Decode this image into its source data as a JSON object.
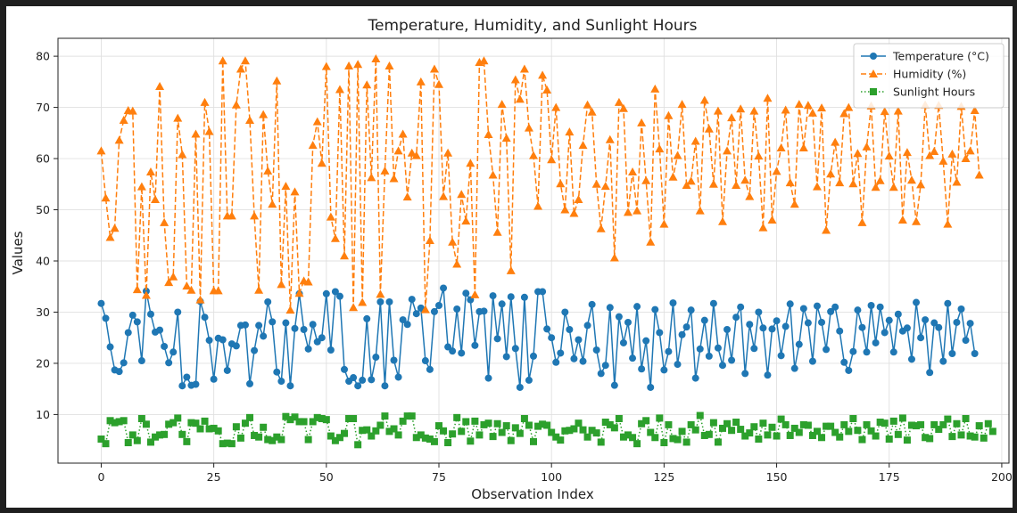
{
  "chart_data": {
    "type": "line",
    "title": "Temperature, Humidity, and Sunlight Hours",
    "xlabel": "Observation Index",
    "ylabel": "Values",
    "xlim": [
      -9.6,
      201.6
    ],
    "ylim": [
      0.5,
      83.5
    ],
    "xticks": [
      0,
      25,
      50,
      75,
      100,
      125,
      150,
      175,
      200
    ],
    "yticks": [
      10,
      20,
      30,
      40,
      50,
      60,
      70,
      80
    ],
    "grid": true,
    "legend_position": "top-right",
    "series": [
      {
        "name": "Temperature (°C)",
        "color": "#1f77b4",
        "line_style": "solid",
        "marker": "circle",
        "values": [
          31.7,
          28.8,
          23.2,
          18.7,
          18.4,
          20.1,
          26.0,
          29.4,
          28.1,
          20.5,
          34.1,
          29.6,
          26.1,
          26.5,
          23.3,
          20.1,
          22.2,
          30.0,
          15.6,
          17.3,
          15.7,
          15.9,
          32.1,
          29.0,
          24.5,
          16.9,
          24.9,
          24.6,
          18.6,
          23.8,
          23.4,
          27.4,
          27.5,
          16.0,
          22.5,
          27.4,
          25.3,
          32.0,
          28.1,
          18.3,
          16.5,
          27.9,
          15.6,
          26.8,
          33.6,
          26.6,
          22.8,
          27.6,
          24.2,
          25.0,
          33.6,
          22.6,
          34.0,
          33.1,
          18.8,
          16.5,
          17.2,
          15.6,
          16.7,
          28.7,
          16.8,
          21.2,
          32.0,
          15.6,
          32.0,
          20.6,
          17.3,
          28.5,
          27.6,
          32.5,
          29.7,
          30.8,
          20.5,
          18.8,
          30.1,
          31.3,
          34.7,
          23.2,
          22.4,
          30.6,
          22.0,
          33.7,
          32.4,
          23.5,
          30.1,
          30.2,
          17.1,
          33.2,
          24.8,
          31.6,
          21.3,
          33.0,
          22.9,
          15.3,
          32.9,
          16.7,
          21.4,
          34.0,
          34.0,
          26.7,
          25.0,
          20.2,
          22.0,
          30.0,
          26.6,
          20.9,
          24.6,
          20.4,
          27.4,
          31.5,
          22.6,
          18.0,
          19.6,
          30.9,
          15.7,
          29.1,
          24.0,
          28.0,
          21.0,
          31.1,
          18.9,
          24.4,
          15.3,
          30.5,
          26.0,
          18.7,
          22.3,
          31.8,
          19.8,
          25.6,
          27.1,
          30.4,
          17.1,
          22.8,
          28.4,
          21.4,
          31.7,
          23.0,
          19.6,
          26.6,
          20.6,
          29.0,
          31.0,
          18.0,
          27.6,
          22.9,
          30.0,
          26.9,
          17.7,
          26.7,
          28.3,
          21.5,
          27.2,
          31.6,
          19.0,
          23.7,
          30.7,
          27.9,
          20.4,
          31.2,
          28.0,
          22.7,
          30.1,
          31.0,
          26.3,
          20.2,
          18.6,
          22.3,
          30.4,
          27.0,
          22.2,
          31.3,
          24.0,
          31.0,
          26.0,
          28.4,
          22.2,
          29.6,
          26.3,
          26.9,
          20.8,
          31.9,
          25.0,
          28.5,
          18.2,
          27.9,
          27.0,
          20.4,
          31.7,
          21.9,
          28.0,
          30.6,
          24.5,
          27.8,
          21.9
        ]
      },
      {
        "name": "Humidity (%)",
        "color": "#ff7f0e",
        "line_style": "dashed",
        "marker": "triangle",
        "values": [
          61.5,
          52.3,
          44.6,
          46.4,
          63.6,
          67.5,
          69.4,
          69.3,
          34.4,
          54.5,
          33.3,
          57.4,
          52.0,
          74.1,
          47.5,
          35.8,
          36.9,
          67.9,
          60.8,
          35.1,
          34.3,
          64.8,
          32.4,
          71.0,
          65.3,
          34.2,
          34.2,
          79.1,
          48.8,
          48.8,
          70.5,
          77.5,
          79.1,
          67.5,
          48.8,
          34.3,
          68.6,
          57.6,
          51.1,
          75.2,
          35.4,
          54.6,
          30.4,
          53.5,
          33.7,
          36.1,
          35.9,
          62.6,
          67.2,
          59.1,
          78.0,
          48.6,
          44.4,
          73.5,
          41.0,
          78.1,
          30.9,
          78.4,
          31.9,
          74.4,
          56.3,
          79.5,
          33.5,
          57.6,
          78.1,
          56.1,
          61.5,
          64.8,
          52.5,
          61.1,
          60.6,
          75.0,
          30.5,
          44.0,
          77.5,
          74.5,
          52.6,
          61.1,
          43.7,
          39.4,
          53.0,
          47.8,
          59.1,
          33.4,
          78.8,
          79.1,
          64.7,
          56.8,
          45.6,
          70.6,
          64.0,
          38.1,
          75.4,
          71.6,
          77.5,
          66.0,
          60.6,
          50.7,
          76.3,
          73.4,
          59.8,
          70.0,
          55.1,
          50.0,
          65.2,
          49.3,
          52.0,
          62.6,
          70.5,
          69.1,
          55.0,
          46.3,
          54.6,
          63.7,
          40.6,
          71.0,
          69.8,
          49.5,
          57.4,
          49.8,
          67.0,
          55.7,
          43.7,
          73.6,
          61.9,
          47.2,
          68.4,
          56.4,
          60.6,
          70.6,
          54.8,
          55.6,
          63.4,
          49.8,
          71.4,
          65.8,
          55.0,
          69.3,
          47.7,
          61.5,
          68.0,
          54.8,
          69.7,
          55.8,
          52.6,
          69.3,
          60.5,
          46.5,
          71.8,
          48.0,
          57.5,
          62.1,
          69.5,
          55.3,
          51.1,
          70.6,
          62.1,
          70.4,
          68.9,
          54.5,
          69.9,
          46.0,
          57.0,
          63.2,
          55.3,
          68.8,
          70.0,
          55.1,
          61.0,
          47.5,
          62.3,
          70.3,
          54.4,
          55.7,
          69.2,
          60.5,
          54.4,
          69.3,
          48.0,
          61.2,
          55.8,
          47.7,
          54.9,
          70.5,
          60.6,
          61.4,
          70.4,
          59.5,
          47.2,
          60.9,
          55.4,
          70.2,
          60.0,
          61.5,
          69.4,
          56.8
        ]
      },
      {
        "name": "Sunlight Hours",
        "color": "#2ca02c",
        "line_style": "dotted",
        "marker": "square",
        "values": [
          5.2,
          4.3,
          8.8,
          8.4,
          8.6,
          8.8,
          4.5,
          6.0,
          4.9,
          9.2,
          8.1,
          4.6,
          5.6,
          6.0,
          6.1,
          8.1,
          8.4,
          9.3,
          6.1,
          4.7,
          8.4,
          8.3,
          7.2,
          8.7,
          7.2,
          7.3,
          6.8,
          4.3,
          4.4,
          4.3,
          7.6,
          5.4,
          8.3,
          9.4,
          5.9,
          5.6,
          7.5,
          5.1,
          4.9,
          5.6,
          5.1,
          9.6,
          9.0,
          9.5,
          8.6,
          8.6,
          5.1,
          8.6,
          9.4,
          9.2,
          9.0,
          5.8,
          4.9,
          5.5,
          6.3,
          9.2,
          9.2,
          4.1,
          6.9,
          7.0,
          5.8,
          6.8,
          7.9,
          9.7,
          6.7,
          7.2,
          6.0,
          8.7,
          9.7,
          9.7,
          5.5,
          6.0,
          5.4,
          5.2,
          4.7,
          7.8,
          6.8,
          4.5,
          6.2,
          9.4,
          6.7,
          8.6,
          4.8,
          8.7,
          6.0,
          8.0,
          8.3,
          5.7,
          8.2,
          6.5,
          7.8,
          4.9,
          7.4,
          6.3,
          9.2,
          7.9,
          4.7,
          7.7,
          8.1,
          7.9,
          6.5,
          5.6,
          5.0,
          6.8,
          6.9,
          7.2,
          8.3,
          7.0,
          5.6,
          6.9,
          6.4,
          4.6,
          8.5,
          8.0,
          7.4,
          9.2,
          5.6,
          6.0,
          5.5,
          4.3,
          8.2,
          8.8,
          6.5,
          5.5,
          9.3,
          4.5,
          8.0,
          5.3,
          5.1,
          6.7,
          4.6,
          8.0,
          7.0,
          9.8,
          5.9,
          6.1,
          8.4,
          4.6,
          7.3,
          8.2,
          6.9,
          8.5,
          7.1,
          5.8,
          6.4,
          7.6,
          5.2,
          8.3,
          6.0,
          7.5,
          5.8,
          9.1,
          8.0,
          5.9,
          7.3,
          6.5,
          8.0,
          7.9,
          5.9,
          6.7,
          5.5,
          7.7,
          7.7,
          6.5,
          5.6,
          8.0,
          6.7,
          9.2,
          6.9,
          5.1,
          8.0,
          6.8,
          5.8,
          8.5,
          8.3,
          5.2,
          8.7,
          6.1,
          9.3,
          5.0,
          7.9,
          7.8,
          8.0,
          5.5,
          5.3,
          8.0,
          7.1,
          8.0,
          9.1,
          5.7,
          8.2,
          6.0,
          9.2,
          5.8,
          5.6,
          7.8,
          5.4,
          8.2,
          6.7
        ]
      }
    ]
  }
}
